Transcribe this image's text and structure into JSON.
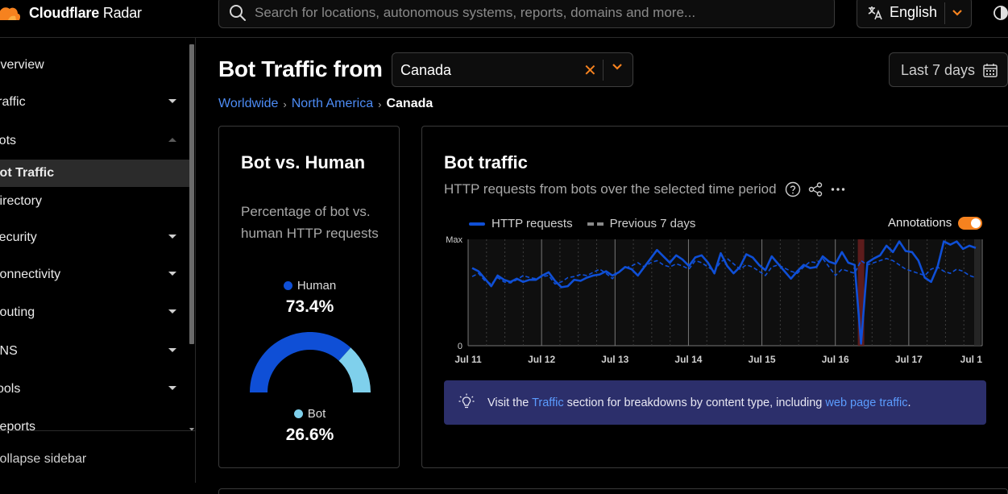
{
  "brand": {
    "name_bold": "Cloudflare",
    "name_rest": " Radar",
    "accent": "#f6821f"
  },
  "search": {
    "placeholder": "Search for locations, autonomous systems, reports, domains and more..."
  },
  "language": {
    "label": "English"
  },
  "sidebar": {
    "items": [
      {
        "label": "Overview",
        "caret": "none"
      },
      {
        "label": "Traffic",
        "caret": "down"
      },
      {
        "label": "Bots",
        "caret": "up"
      },
      {
        "label": "Bot Traffic",
        "caret": "none",
        "active": true
      },
      {
        "label": "Directory",
        "caret": "none"
      },
      {
        "label": "Security",
        "caret": "down"
      },
      {
        "label": "Connectivity",
        "caret": "down"
      },
      {
        "label": "Routing",
        "caret": "down"
      },
      {
        "label": "DNS",
        "caret": "down"
      },
      {
        "label": "Tools",
        "caret": "down"
      },
      {
        "label": "Reports",
        "caret": "none"
      }
    ],
    "collapse_label": "Collapse sidebar"
  },
  "header": {
    "title": "Bot Traffic from",
    "location": "Canada",
    "date_range": "Last 7 days"
  },
  "breadcrumb": [
    "Worldwide",
    "North America",
    "Canada"
  ],
  "bot_vs_human": {
    "title": "Bot vs. Human",
    "description": "Percentage of bot vs. human HTTP requests",
    "human_label": "Human",
    "human_pct": "73.4%",
    "bot_label": "Bot",
    "bot_pct": "26.6%",
    "human_color": "#0f4fd6",
    "bot_color": "#7fd0ec"
  },
  "bot_traffic": {
    "title": "Bot traffic",
    "subtitle": "HTTP requests from bots over the selected time period",
    "annotations_label": "Annotations",
    "info": {
      "prefix": "Visit the ",
      "link1": "Traffic",
      "middle": " section for breakdowns by content type, including ",
      "link2": "web page traffic",
      "suffix": "."
    }
  },
  "chart_data": {
    "type": "line",
    "x_ticks": [
      "Jul 11",
      "Jul 12",
      "Jul 13",
      "Jul 14",
      "Jul 15",
      "Jul 16",
      "Jul 17",
      "Jul 1"
    ],
    "y_ticks": [
      "0",
      "Max"
    ],
    "ylim": [
      0,
      1
    ],
    "grid": true,
    "legend_position": "top",
    "series": [
      {
        "name": "HTTP requests",
        "color": "#0f4fd6",
        "style": "solid",
        "values": [
          0.73,
          0.7,
          0.63,
          0.56,
          0.66,
          0.62,
          0.6,
          0.63,
          0.6,
          0.62,
          0.62,
          0.66,
          0.69,
          0.61,
          0.55,
          0.56,
          0.62,
          0.61,
          0.64,
          0.66,
          0.67,
          0.7,
          0.66,
          0.69,
          0.74,
          0.72,
          0.66,
          0.74,
          0.82,
          0.9,
          0.84,
          0.78,
          0.85,
          0.81,
          0.75,
          0.83,
          0.85,
          0.78,
          0.68,
          0.87,
          0.75,
          0.68,
          0.74,
          0.86,
          0.83,
          0.76,
          0.71,
          0.84,
          0.77,
          0.7,
          0.63,
          0.7,
          0.76,
          0.73,
          0.74,
          0.84,
          0.79,
          0.77,
          0.88,
          0.78,
          0.76,
          0.02,
          0.78,
          0.82,
          0.85,
          0.94,
          0.88,
          0.98,
          0.89,
          0.88,
          0.8,
          0.64,
          0.6,
          0.74,
          0.98,
          0.95,
          0.98,
          0.91,
          0.94,
          0.92
        ]
      },
      {
        "name": "Previous 7 days",
        "color": "#0f4fd6",
        "style": "dashed",
        "values": [
          0.65,
          0.68,
          0.61,
          0.58,
          0.64,
          0.6,
          0.59,
          0.62,
          0.66,
          0.64,
          0.63,
          0.65,
          0.66,
          0.58,
          0.6,
          0.64,
          0.65,
          0.67,
          0.66,
          0.69,
          0.72,
          0.68,
          0.63,
          0.7,
          0.73,
          0.75,
          0.78,
          0.74,
          0.78,
          0.8,
          0.76,
          0.74,
          0.77,
          0.75,
          0.72,
          0.8,
          0.78,
          0.74,
          0.7,
          0.79,
          0.82,
          0.77,
          0.72,
          0.76,
          0.74,
          0.7,
          0.66,
          0.74,
          0.76,
          0.73,
          0.7,
          0.68,
          0.74,
          0.79,
          0.78,
          0.82,
          0.74,
          0.66,
          0.72,
          0.7,
          0.68,
          0.8,
          0.76,
          0.78,
          0.8,
          0.82,
          0.8,
          0.76,
          0.72,
          0.7,
          0.68,
          0.66,
          0.72,
          0.74,
          0.7,
          0.68,
          0.72,
          0.7,
          0.66,
          0.64
        ]
      }
    ]
  }
}
